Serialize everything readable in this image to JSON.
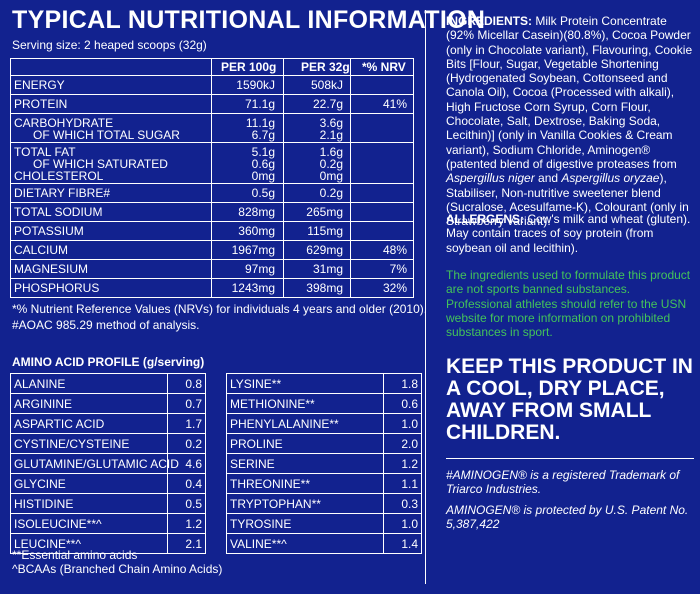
{
  "title": "TYPICAL NUTRITIONAL INFORMATION",
  "serving": "Serving size: 2 heaped scoops (32g)",
  "nutrition": {
    "headers": [
      "PER 100g",
      "PER 32g",
      "*% NRV"
    ],
    "groups": [
      {
        "rows": [
          {
            "label": "ENERGY",
            "p100": "1590kJ",
            "p32": "508kJ",
            "nrv": ""
          }
        ]
      },
      {
        "rows": [
          {
            "label": "PROTEIN",
            "p100": "71.1g",
            "p32": "22.7g",
            "nrv": "41%"
          }
        ]
      },
      {
        "rows": [
          {
            "label": "CARBOHYDRATE",
            "p100": "11.1g",
            "p32": "3.6g",
            "nrv": ""
          },
          {
            "label": "OF WHICH TOTAL SUGAR",
            "p100": "6.7g",
            "p32": "2.1g",
            "nrv": ""
          }
        ]
      },
      {
        "rows": [
          {
            "label": "TOTAL FAT",
            "p100": "5.1g",
            "p32": "1.6g",
            "nrv": ""
          },
          {
            "label": "OF WHICH SATURATED",
            "p100": "0.6g",
            "p32": "0.2g",
            "nrv": ""
          },
          {
            "label": "CHOLESTEROL",
            "p100": "0mg",
            "p32": "0mg",
            "nrv": ""
          }
        ]
      },
      {
        "rows": [
          {
            "label": "DIETARY FIBRE#",
            "p100": "0.5g",
            "p32": "0.2g",
            "nrv": ""
          }
        ]
      },
      {
        "rows": [
          {
            "label": "TOTAL SODIUM",
            "p100": "828mg",
            "p32": "265mg",
            "nrv": ""
          }
        ]
      },
      {
        "rows": [
          {
            "label": "POTASSIUM",
            "p100": "360mg",
            "p32": "115mg",
            "nrv": ""
          }
        ]
      },
      {
        "rows": [
          {
            "label": "CALCIUM",
            "p100": "1967mg",
            "p32": "629mg",
            "nrv": "48%"
          }
        ]
      },
      {
        "rows": [
          {
            "label": "MAGNESIUM",
            "p100": "97mg",
            "p32": "31mg",
            "nrv": "7%"
          }
        ]
      },
      {
        "rows": [
          {
            "label": "PHOSPHORUS",
            "p100": "1243mg",
            "p32": "398mg",
            "nrv": "32%"
          }
        ]
      }
    ]
  },
  "footnote1": "*% Nutrient Reference Values (NRVs) for individuals 4 years and older (2010).",
  "footnote2": "#AOAC 985.29 method of analysis.",
  "amino": {
    "title": "AMINO ACID PROFILE (g/serving)",
    "left": [
      {
        "name": "ALANINE",
        "value": "0.8"
      },
      {
        "name": "ARGININE",
        "value": "0.7"
      },
      {
        "name": "ASPARTIC ACID",
        "value": "1.7"
      },
      {
        "name": "CYSTINE/CYSTEINE",
        "value": "0.2"
      },
      {
        "name": "GLUTAMINE/GLUTAMIC ACID",
        "value": "4.6"
      },
      {
        "name": "GLYCINE",
        "value": "0.4"
      },
      {
        "name": "HISTIDINE",
        "value": "0.5"
      },
      {
        "name": "ISOLEUCINE**^",
        "value": "1.2"
      },
      {
        "name": "LEUCINE**^",
        "value": "2.1"
      }
    ],
    "right": [
      {
        "name": "LYSINE**",
        "value": "1.8"
      },
      {
        "name": "METHIONINE**",
        "value": "0.6"
      },
      {
        "name": "PHENYLALANINE**",
        "value": "1.0"
      },
      {
        "name": "PROLINE",
        "value": "2.0"
      },
      {
        "name": "SERINE",
        "value": "1.2"
      },
      {
        "name": "THREONINE**",
        "value": "1.1"
      },
      {
        "name": "TRYPTOPHAN**",
        "value": "0.3"
      },
      {
        "name": "TYROSINE",
        "value": "1.0"
      },
      {
        "name": "VALINE**^",
        "value": "1.4"
      }
    ],
    "note1": "**Essential amino acids",
    "note2": "^BCAAs (Branched Chain Amino Acids)"
  },
  "ingredients": {
    "label": "INGREDIENTS:",
    "part1": " Milk Protein Concentrate (92% Micellar Casein)(80.8%), Cocoa Powder (only in Chocolate variant), Flavouring, Cookie Bits [Flour, Sugar, Vegetable Shortening (Hydrogenated Soybean, Cottonseed and Canola Oil), Cocoa (Processed with alkali), High Fructose Corn Syrup, Corn Flour, Chocolate, Salt, Dextrose, Baking Soda, Lecithin)] (only in Vanilla Cookies & Cream variant), Sodium Chloride, Aminogen® (patented blend of digestive proteases from ",
    "species1": "Aspergillus niger",
    "and": " and ",
    "species2": "Aspergillus oryzae",
    "part2": "), Stabiliser, Non-nutritive sweetener blend (Sucralose, Acesulfame-K), Colourant (only in Strawberry variant)."
  },
  "allergens": {
    "label": "ALLERGENS:",
    "text": " Cow's milk and wheat (gluten). May contain traces of soy protein (from soybean oil and lecithin)."
  },
  "sport_note": "The ingredients used to formulate this product are not sports banned substances. Professional athletes should refer to the USN website for more information on prohibited substances in sport.",
  "storage": "KEEP THIS PRODUCT IN A COOL, DRY PLACE, AWAY FROM SMALL CHILDREN.",
  "trademark": "#AMINOGEN® is a registered Trademark of Triarco Industries.",
  "patent": "AMINOGEN® is protected by U.S. Patent No. 5,387,422",
  "colors": {
    "background": "#12228f",
    "text": "#ffffff",
    "green": "#43c35a"
  }
}
